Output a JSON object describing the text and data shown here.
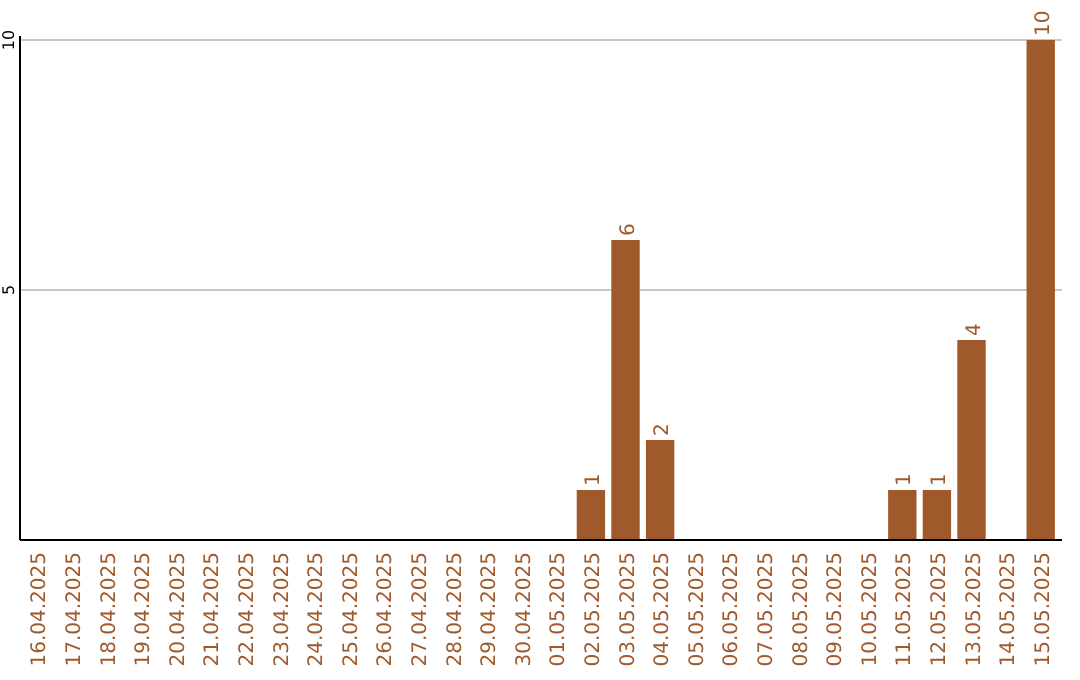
{
  "chart_data": {
    "type": "bar",
    "categories": [
      "16.04.2025",
      "17.04.2025",
      "18.04.2025",
      "19.04.2025",
      "20.04.2025",
      "21.04.2025",
      "22.04.2025",
      "23.04.2025",
      "24.04.2025",
      "25.04.2025",
      "26.04.2025",
      "27.04.2025",
      "28.04.2025",
      "29.04.2025",
      "30.04.2025",
      "01.05.2025",
      "02.05.2025",
      "03.05.2025",
      "04.05.2025",
      "05.05.2025",
      "06.05.2025",
      "07.05.2025",
      "08.05.2025",
      "09.05.2025",
      "10.05.2025",
      "11.05.2025",
      "12.05.2025",
      "13.05.2025",
      "14.05.2025",
      "15.05.2025"
    ],
    "values": [
      0,
      0,
      0,
      0,
      0,
      0,
      0,
      0,
      0,
      0,
      0,
      0,
      0,
      0,
      0,
      0,
      1,
      6,
      2,
      0,
      0,
      0,
      0,
      0,
      0,
      1,
      1,
      4,
      0,
      10
    ],
    "value_labels": [
      null,
      null,
      null,
      null,
      null,
      null,
      null,
      null,
      null,
      null,
      null,
      null,
      null,
      null,
      null,
      null,
      "1",
      "6",
      "2",
      null,
      null,
      null,
      null,
      null,
      null,
      "1",
      "1",
      "4",
      null,
      "10"
    ],
    "color": "#a0592a",
    "ylim": [
      0,
      10
    ],
    "yticks": [
      5,
      10
    ],
    "grid": "y"
  }
}
